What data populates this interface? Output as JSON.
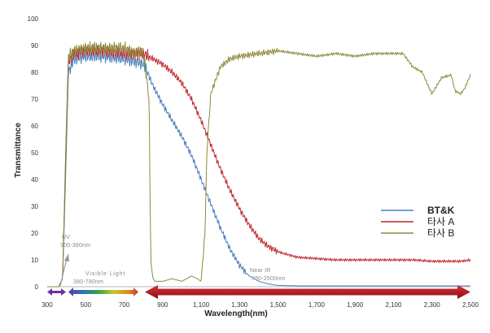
{
  "chart_data": {
    "type": "line",
    "title": "",
    "xlabel": "Wavelength(nm)",
    "ylabel": "Transmittance",
    "xlim": [
      300,
      2500
    ],
    "ylim": [
      0,
      100
    ],
    "x_ticks": [
      300,
      500,
      700,
      900,
      1100,
      1300,
      1500,
      1700,
      1900,
      2100,
      2300,
      2500
    ],
    "x_tick_labels": [
      "300",
      "500",
      "700",
      "900",
      "1,100",
      "1,300",
      "1,500",
      "1,700",
      "1,900",
      "2,100",
      "2,300",
      "2,500"
    ],
    "y_ticks": [
      0,
      10,
      20,
      30,
      40,
      50,
      60,
      70,
      80,
      90,
      100
    ],
    "y_tick_labels": [
      "0",
      "10",
      "20",
      "30",
      "40",
      "50",
      "60",
      "70",
      "80",
      "90",
      "100"
    ],
    "grid": false,
    "legend_position": "right",
    "series": [
      {
        "name": "BT&K",
        "color": "#4a7fc0",
        "x": [
          300,
          360,
          380,
          395,
          410,
          440,
          500,
          600,
          700,
          760,
          800,
          820,
          850,
          900,
          950,
          1000,
          1050,
          1100,
          1150,
          1200,
          1250,
          1300,
          1350,
          1400,
          1450,
          1500,
          1600,
          2500
        ],
        "y": [
          0,
          0,
          3,
          40,
          80,
          85,
          86,
          86,
          85,
          84,
          83,
          80,
          75,
          68,
          62,
          56,
          49,
          40,
          31,
          22,
          14,
          8,
          4,
          2,
          1,
          0.5,
          0.3,
          0.3
        ]
      },
      {
        "name": "타사 A",
        "color": "#c0272d",
        "x": [
          300,
          360,
          380,
          395,
          410,
          440,
          500,
          600,
          700,
          760,
          800,
          850,
          900,
          950,
          1000,
          1050,
          1100,
          1150,
          1200,
          1250,
          1300,
          1350,
          1400,
          1450,
          1500,
          1600,
          1700,
          1800,
          1900,
          2000,
          2100,
          2200,
          2300,
          2400,
          2450,
          2500
        ],
        "y": [
          0,
          0,
          3,
          45,
          84,
          87,
          88,
          88,
          87,
          87,
          87,
          85,
          83,
          80,
          76,
          70,
          62,
          53,
          44,
          36,
          29,
          23,
          18,
          15,
          13,
          11,
          10.5,
          10,
          10,
          10,
          10,
          10,
          9.5,
          9.5,
          9.5,
          10
        ]
      },
      {
        "name": "타사 B",
        "color": "#8b8a3a",
        "x": [
          300,
          360,
          380,
          395,
          410,
          440,
          500,
          600,
          700,
          760,
          780,
          800,
          830,
          835,
          840,
          850,
          860,
          880,
          900,
          950,
          1000,
          1050,
          1080,
          1100,
          1120,
          1130,
          1150,
          1200,
          1250,
          1300,
          1400,
          1500,
          1600,
          1700,
          1800,
          1900,
          2000,
          2100,
          2150,
          2200,
          2250,
          2280,
          2300,
          2350,
          2400,
          2420,
          2450,
          2470,
          2500
        ],
        "y": [
          0,
          0,
          3,
          48,
          86,
          88,
          89,
          89,
          89,
          87,
          88,
          87,
          70,
          30,
          8,
          3,
          2,
          2,
          2,
          3,
          2,
          4,
          3,
          2,
          20,
          50,
          72,
          82,
          85,
          86,
          87,
          88,
          87,
          86,
          87,
          86,
          87,
          87,
          87,
          82,
          80,
          75,
          72,
          78,
          79,
          73,
          72,
          74,
          79
        ]
      }
    ],
    "annotations": [
      {
        "text": "UV",
        "subtext": "300-380nm",
        "x_range": [
          300,
          380
        ],
        "color": "#7030a0"
      },
      {
        "text": "Visible Light",
        "subtext": "380-780nm",
        "x_range": [
          380,
          780
        ],
        "color": "#e08a28"
      },
      {
        "text": "Near IR",
        "subtext": "780-2500nm",
        "x_range": [
          780,
          2500
        ],
        "color": "#b81622"
      }
    ]
  }
}
